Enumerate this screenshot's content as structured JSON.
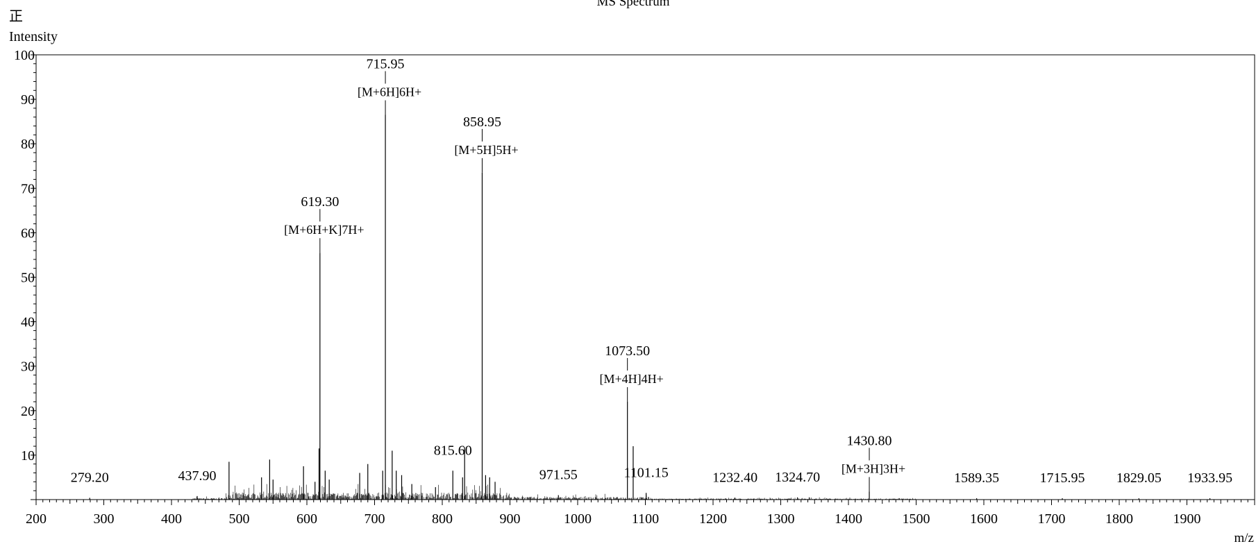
{
  "chart_data": {
    "type": "bar",
    "title": "MS Spectrum",
    "polarity_label": "正",
    "xlabel": "m/z",
    "ylabel": "Intensity",
    "xlim": [
      200,
      2000
    ],
    "ylim": [
      0,
      100
    ],
    "x_ticks": [
      200,
      300,
      400,
      500,
      600,
      700,
      800,
      900,
      1000,
      1100,
      1200,
      1300,
      1400,
      1500,
      1600,
      1700,
      1800,
      1900
    ],
    "y_ticks": [
      10,
      20,
      30,
      40,
      50,
      60,
      70,
      80,
      90,
      100
    ],
    "series": [
      {
        "peaks": [
          {
            "mz": 279.2,
            "intensity": 0.4,
            "label": "279.20"
          },
          {
            "mz": 437.9,
            "intensity": 0.8,
            "label": "437.90"
          },
          {
            "mz": 485.0,
            "intensity": 8.5
          },
          {
            "mz": 533.0,
            "intensity": 5.0
          },
          {
            "mz": 545.0,
            "intensity": 9.0
          },
          {
            "mz": 550.0,
            "intensity": 4.5
          },
          {
            "mz": 595.0,
            "intensity": 7.5
          },
          {
            "mz": 612.0,
            "intensity": 4.0
          },
          {
            "mz": 619.3,
            "intensity": 55.5,
            "label": "619.30",
            "annotation": "[M+6H+K]7H+"
          },
          {
            "mz": 618.0,
            "intensity": 11.5
          },
          {
            "mz": 627.0,
            "intensity": 6.5
          },
          {
            "mz": 633.0,
            "intensity": 4.5
          },
          {
            "mz": 678.0,
            "intensity": 6.0
          },
          {
            "mz": 690.0,
            "intensity": 8.0
          },
          {
            "mz": 712.0,
            "intensity": 6.5
          },
          {
            "mz": 715.95,
            "intensity": 86.5,
            "label": "715.95",
            "annotation": "[M+6H]6H+"
          },
          {
            "mz": 726.0,
            "intensity": 11.0
          },
          {
            "mz": 732.0,
            "intensity": 6.5
          },
          {
            "mz": 740.0,
            "intensity": 5.5
          },
          {
            "mz": 755.0,
            "intensity": 3.5
          },
          {
            "mz": 790.0,
            "intensity": 2.8
          },
          {
            "mz": 815.6,
            "intensity": 6.5,
            "label": "815.60"
          },
          {
            "mz": 830.0,
            "intensity": 5.0
          },
          {
            "mz": 833.0,
            "intensity": 11.8
          },
          {
            "mz": 858.95,
            "intensity": 73.5,
            "label": "858.95",
            "annotation": "[M+5H]5H+"
          },
          {
            "mz": 864.0,
            "intensity": 5.5
          },
          {
            "mz": 870.0,
            "intensity": 5.0
          },
          {
            "mz": 878.0,
            "intensity": 4.0
          },
          {
            "mz": 971.55,
            "intensity": 1.0,
            "label": "971.55"
          },
          {
            "mz": 1073.5,
            "intensity": 22.0,
            "label": "1073.50",
            "annotation": "[M+4H]4H+"
          },
          {
            "mz": 1082.0,
            "intensity": 12.0
          },
          {
            "mz": 1101.15,
            "intensity": 1.5,
            "label": "1101.15"
          },
          {
            "mz": 1232.4,
            "intensity": 0.4,
            "label": "1232.40"
          },
          {
            "mz": 1324.7,
            "intensity": 0.5,
            "label": "1324.70"
          },
          {
            "mz": 1430.8,
            "intensity": 1.8,
            "label": "1430.80",
            "annotation": "[M+3H]3H+"
          },
          {
            "mz": 1589.35,
            "intensity": 0.3,
            "label": "1589.35"
          },
          {
            "mz": 1715.95,
            "intensity": 0.3,
            "label": "1715.95"
          },
          {
            "mz": 1829.05,
            "intensity": 0.3,
            "label": "1829.05"
          },
          {
            "mz": 1933.95,
            "intensity": 0.3,
            "label": "1933.95"
          }
        ]
      }
    ],
    "grid": false
  }
}
